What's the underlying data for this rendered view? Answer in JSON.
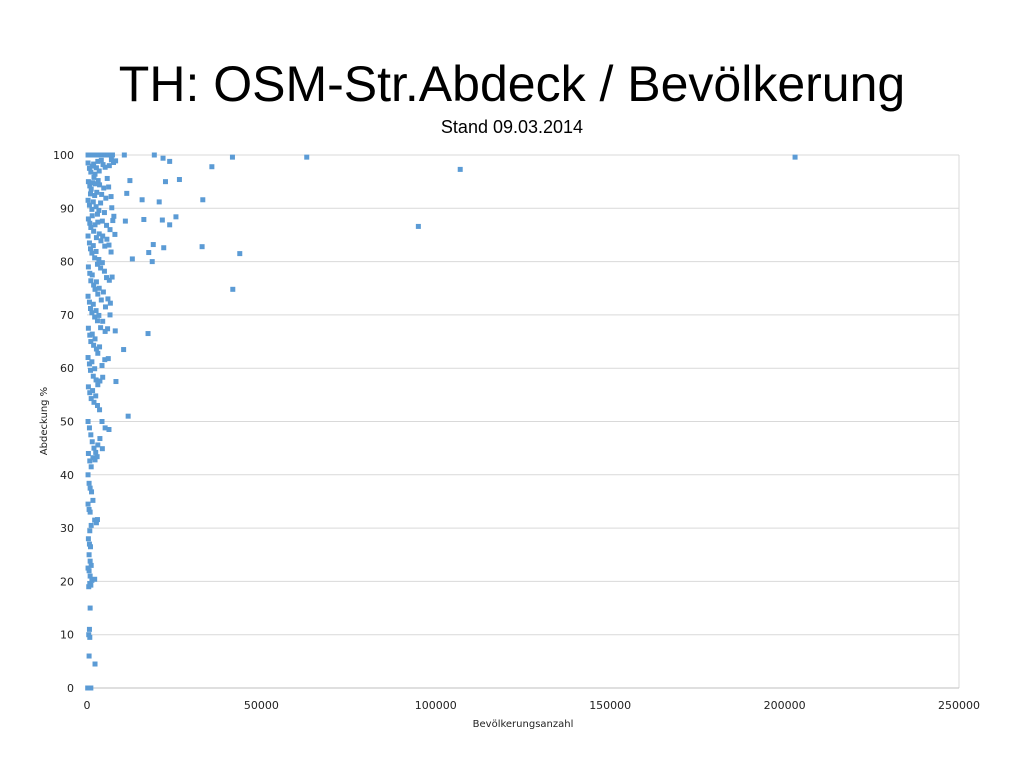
{
  "slide": {
    "title": "TH: OSM-Str.Abdeck / Bevölkerung",
    "subtitle": "Stand 09.03.2014"
  },
  "chart_data": {
    "type": "scatter",
    "xlabel": "Bevölkerungsanzahl",
    "ylabel": "Abdeckung %",
    "xlim": [
      0,
      250000
    ],
    "ylim": [
      0,
      100
    ],
    "xticks": [
      0,
      50000,
      100000,
      150000,
      200000,
      250000
    ],
    "yticks": [
      0,
      10,
      20,
      30,
      40,
      50,
      60,
      70,
      80,
      90,
      100
    ],
    "grid": true,
    "legend": "none",
    "marker_color": "#5b9bd5",
    "series": [
      {
        "points": [
          [
            300,
            100
          ],
          [
            600,
            100
          ],
          [
            900,
            100
          ],
          [
            1200,
            100
          ],
          [
            1500,
            100
          ],
          [
            1800,
            100
          ],
          [
            2100,
            100
          ],
          [
            2400,
            100
          ],
          [
            2700,
            100
          ],
          [
            3000,
            100
          ],
          [
            3300,
            100
          ],
          [
            3600,
            100
          ],
          [
            3900,
            100
          ],
          [
            4300,
            100
          ],
          [
            4700,
            100
          ],
          [
            5100,
            100
          ],
          [
            5500,
            100
          ],
          [
            5900,
            100
          ],
          [
            6300,
            100
          ],
          [
            6800,
            100
          ],
          [
            7300,
            100
          ],
          [
            10700,
            100
          ],
          [
            19300,
            100
          ],
          [
            21800,
            99.4
          ],
          [
            41700,
            99.6
          ],
          [
            63000,
            99.6
          ],
          [
            203000,
            99.6
          ],
          [
            107000,
            97.3
          ],
          [
            35800,
            97.8
          ],
          [
            23700,
            98.8
          ],
          [
            26500,
            95.4
          ],
          [
            12300,
            95.2
          ],
          [
            22500,
            95.0
          ],
          [
            11400,
            92.8
          ],
          [
            15800,
            91.6
          ],
          [
            20700,
            91.2
          ],
          [
            33200,
            91.6
          ],
          [
            95000,
            86.6
          ],
          [
            25500,
            88.4
          ],
          [
            21600,
            87.8
          ],
          [
            16300,
            87.9
          ],
          [
            11000,
            87.6
          ],
          [
            23700,
            86.9
          ],
          [
            19000,
            83.2
          ],
          [
            22000,
            82.6
          ],
          [
            33000,
            82.8
          ],
          [
            17700,
            81.7
          ],
          [
            18700,
            80.0
          ],
          [
            43800,
            81.5
          ],
          [
            13000,
            80.5
          ],
          [
            41800,
            74.8
          ],
          [
            17500,
            66.5
          ],
          [
            10500,
            63.5
          ],
          [
            8100,
            67.0
          ],
          [
            8300,
            57.5
          ],
          [
            11800,
            51.0
          ],
          [
            300,
            98.5
          ],
          [
            700,
            97.5
          ],
          [
            1100,
            96.8
          ],
          [
            1500,
            97.9
          ],
          [
            1900,
            98.3
          ],
          [
            2300,
            96.4
          ],
          [
            2700,
            97.6
          ],
          [
            3100,
            98.8
          ],
          [
            3500,
            97.0
          ],
          [
            4100,
            99.0
          ],
          [
            4600,
            98.2
          ],
          [
            5200,
            97.7
          ],
          [
            5800,
            95.6
          ],
          [
            6400,
            98.0
          ],
          [
            7000,
            99.1
          ],
          [
            7600,
            98.6
          ],
          [
            8200,
            98.9
          ],
          [
            400,
            95.0
          ],
          [
            800,
            94.2
          ],
          [
            1200,
            93.6
          ],
          [
            1600,
            94.8
          ],
          [
            2000,
            95.8
          ],
          [
            2400,
            94.6
          ],
          [
            2800,
            93.0
          ],
          [
            3200,
            95.2
          ],
          [
            3600,
            94.4
          ],
          [
            4200,
            92.6
          ],
          [
            4800,
            93.8
          ],
          [
            5400,
            91.9
          ],
          [
            6200,
            94.0
          ],
          [
            6900,
            92.2
          ],
          [
            7700,
            88.5
          ],
          [
            7100,
            90.1
          ],
          [
            300,
            91.5
          ],
          [
            700,
            90.6
          ],
          [
            1000,
            92.7
          ],
          [
            1400,
            89.8
          ],
          [
            1800,
            91.2
          ],
          [
            2200,
            92.4
          ],
          [
            2600,
            90.3
          ],
          [
            3000,
            88.9
          ],
          [
            3400,
            89.6
          ],
          [
            3900,
            91.0
          ],
          [
            4400,
            87.6
          ],
          [
            5000,
            89.2
          ],
          [
            5600,
            86.8
          ],
          [
            6600,
            86.0
          ],
          [
            7400,
            87.7
          ],
          [
            8000,
            85.1
          ],
          [
            400,
            88.0
          ],
          [
            800,
            87.2
          ],
          [
            1100,
            86.4
          ],
          [
            1500,
            88.6
          ],
          [
            1900,
            85.7
          ],
          [
            2300,
            86.9
          ],
          [
            2700,
            84.5
          ],
          [
            3100,
            87.4
          ],
          [
            3500,
            85.2
          ],
          [
            4000,
            83.9
          ],
          [
            4500,
            84.8
          ],
          [
            5100,
            82.9
          ],
          [
            5700,
            84.2
          ],
          [
            6300,
            83.1
          ],
          [
            6900,
            81.8
          ],
          [
            300,
            84.8
          ],
          [
            700,
            83.5
          ],
          [
            1000,
            82.4
          ],
          [
            1400,
            81.6
          ],
          [
            1800,
            83.0
          ],
          [
            2200,
            80.7
          ],
          [
            2600,
            81.9
          ],
          [
            3000,
            79.5
          ],
          [
            3400,
            80.4
          ],
          [
            3900,
            78.8
          ],
          [
            4400,
            79.8
          ],
          [
            5000,
            78.2
          ],
          [
            5600,
            77.0
          ],
          [
            6400,
            76.5
          ],
          [
            7200,
            77.1
          ],
          [
            400,
            79.0
          ],
          [
            800,
            77.8
          ],
          [
            1100,
            76.4
          ],
          [
            1500,
            77.5
          ],
          [
            1900,
            75.6
          ],
          [
            2300,
            74.8
          ],
          [
            2700,
            76.2
          ],
          [
            3100,
            73.9
          ],
          [
            3500,
            75.0
          ],
          [
            4100,
            72.8
          ],
          [
            4700,
            74.3
          ],
          [
            5300,
            71.5
          ],
          [
            6000,
            73.0
          ],
          [
            6700,
            72.2
          ],
          [
            300,
            73.5
          ],
          [
            700,
            72.4
          ],
          [
            1000,
            71.2
          ],
          [
            1400,
            70.4
          ],
          [
            1800,
            72.0
          ],
          [
            2200,
            69.6
          ],
          [
            2600,
            70.8
          ],
          [
            3000,
            68.9
          ],
          [
            3400,
            69.9
          ],
          [
            3900,
            67.6
          ],
          [
            4500,
            68.8
          ],
          [
            5200,
            66.9
          ],
          [
            5900,
            67.4
          ],
          [
            6600,
            70.0
          ],
          [
            400,
            67.5
          ],
          [
            800,
            66.2
          ],
          [
            1100,
            65.0
          ],
          [
            1500,
            66.4
          ],
          [
            1900,
            64.3
          ],
          [
            2300,
            65.5
          ],
          [
            2700,
            63.6
          ],
          [
            3100,
            62.8
          ],
          [
            3600,
            64.0
          ],
          [
            4300,
            60.5
          ],
          [
            5100,
            61.6
          ],
          [
            6100,
            61.8
          ],
          [
            300,
            62.0
          ],
          [
            700,
            60.8
          ],
          [
            1000,
            59.6
          ],
          [
            1400,
            61.2
          ],
          [
            1800,
            58.5
          ],
          [
            2200,
            59.9
          ],
          [
            2600,
            57.8
          ],
          [
            3100,
            56.9
          ],
          [
            3700,
            57.6
          ],
          [
            4500,
            58.3
          ],
          [
            400,
            56.5
          ],
          [
            800,
            55.4
          ],
          [
            1200,
            54.3
          ],
          [
            1600,
            55.8
          ],
          [
            2000,
            53.6
          ],
          [
            2500,
            54.8
          ],
          [
            3000,
            53.0
          ],
          [
            3600,
            52.2
          ],
          [
            4300,
            50.0
          ],
          [
            5200,
            48.8
          ],
          [
            6300,
            48.5
          ],
          [
            300,
            50.0
          ],
          [
            700,
            48.8
          ],
          [
            1100,
            47.5
          ],
          [
            1500,
            46.2
          ],
          [
            2000,
            45.0
          ],
          [
            2500,
            44.2
          ],
          [
            3100,
            45.6
          ],
          [
            3700,
            46.8
          ],
          [
            4400,
            44.9
          ],
          [
            400,
            44.0
          ],
          [
            800,
            42.6
          ],
          [
            1200,
            41.5
          ],
          [
            1700,
            43.2
          ],
          [
            2300,
            42.8
          ],
          [
            2900,
            43.4
          ],
          [
            300,
            40.0
          ],
          [
            600,
            38.4
          ],
          [
            900,
            37.5
          ],
          [
            1300,
            36.8
          ],
          [
            1700,
            35.2
          ],
          [
            2200,
            31.5
          ],
          [
            2700,
            31.0
          ],
          [
            3000,
            31.6
          ],
          [
            300,
            34.5
          ],
          [
            600,
            33.5
          ],
          [
            900,
            33.0
          ],
          [
            1200,
            30.5
          ],
          [
            800,
            29.5
          ],
          [
            400,
            28.0
          ],
          [
            700,
            27.0
          ],
          [
            1000,
            26.5
          ],
          [
            600,
            25.0
          ],
          [
            900,
            23.8
          ],
          [
            1200,
            23.0
          ],
          [
            300,
            22.5
          ],
          [
            600,
            22.0
          ],
          [
            900,
            21.0
          ],
          [
            1400,
            20.2
          ],
          [
            2200,
            20.4
          ],
          [
            800,
            19.6
          ],
          [
            500,
            19.0
          ],
          [
            1100,
            19.3
          ],
          [
            900,
            15.0
          ],
          [
            700,
            11.0
          ],
          [
            500,
            10.0
          ],
          [
            800,
            9.5
          ],
          [
            600,
            6.0
          ],
          [
            2300,
            4.5
          ],
          [
            200,
            0
          ],
          [
            500,
            0
          ],
          [
            800,
            0
          ],
          [
            1100,
            0
          ]
        ]
      }
    ]
  }
}
